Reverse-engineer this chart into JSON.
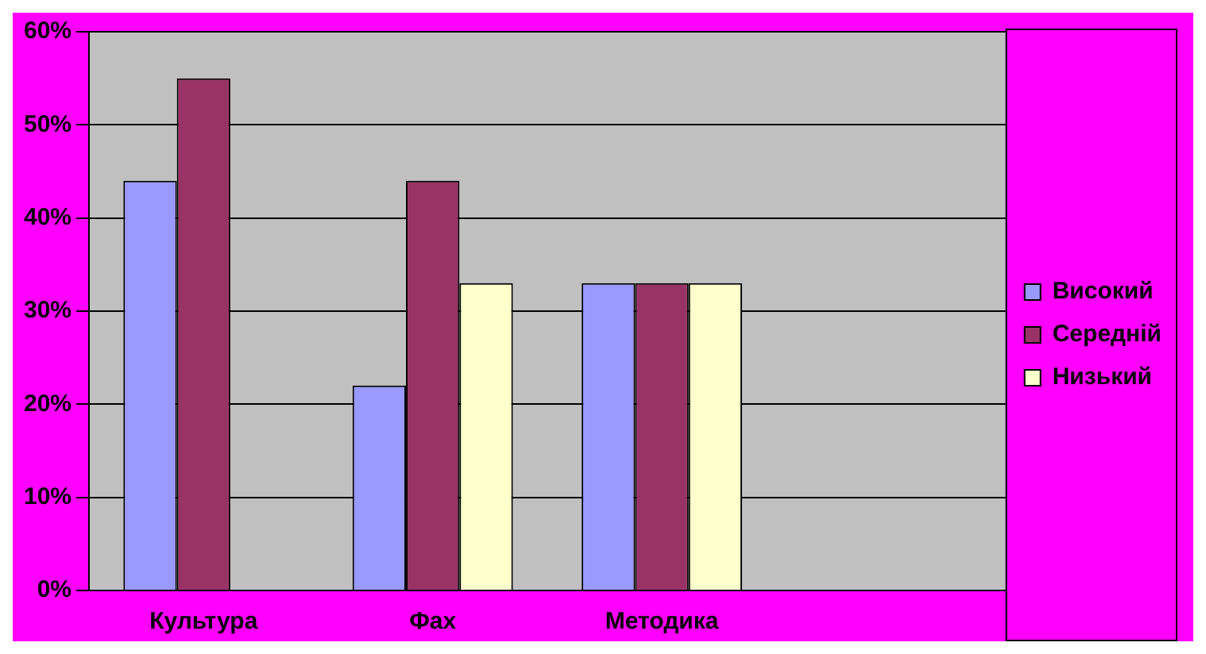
{
  "chart_data": {
    "type": "bar",
    "categories": [
      "Культура",
      "Фах",
      "Методика",
      null
    ],
    "series": [
      {
        "name": "Високий",
        "color": "#9999ff",
        "values": [
          44,
          22,
          33,
          null
        ]
      },
      {
        "name": "Середній",
        "color": "#993366",
        "values": [
          55,
          44,
          33,
          null
        ]
      },
      {
        "name": "Низький",
        "color": "#ffffcc",
        "values": [
          0,
          33,
          33,
          null
        ]
      }
    ],
    "ylim": [
      0,
      60
    ],
    "yticks": [
      {
        "value": 0,
        "label": "0%"
      },
      {
        "value": 10,
        "label": "10%"
      },
      {
        "value": 20,
        "label": "20%"
      },
      {
        "value": 30,
        "label": "30%"
      },
      {
        "value": 40,
        "label": "40%"
      },
      {
        "value": 50,
        "label": "50%"
      },
      {
        "value": 60,
        "label": "60%"
      }
    ],
    "grid": "y",
    "legend": "right"
  }
}
